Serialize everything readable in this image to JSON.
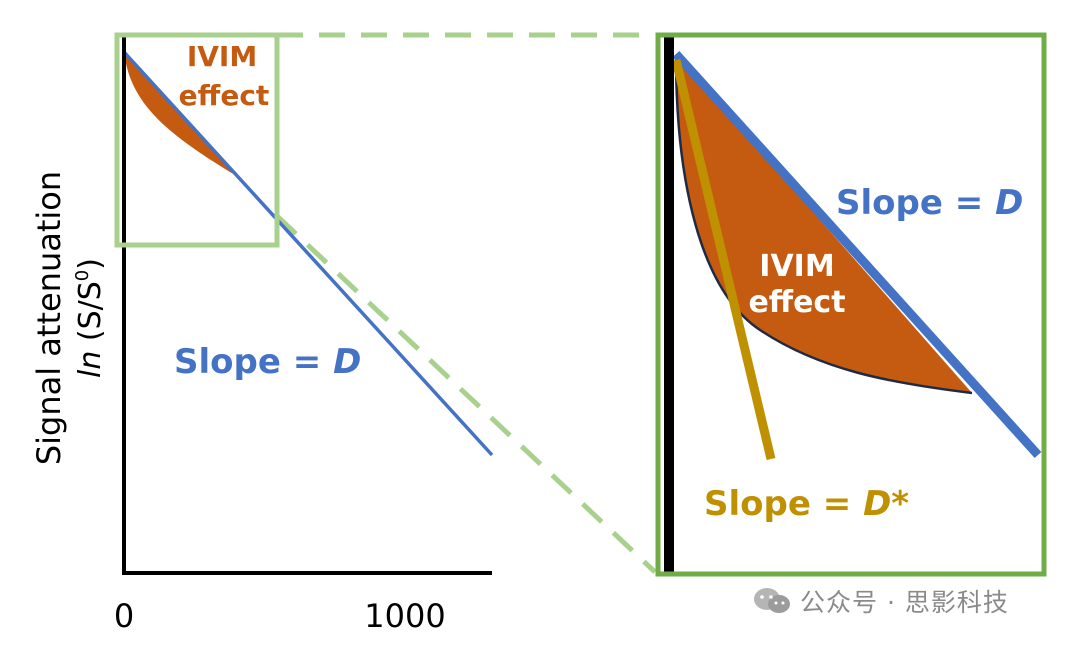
{
  "colors": {
    "axis": "#000000",
    "slope_d": "#4472c4",
    "slope_dstar": "#bf9000",
    "ivim_fill": "#c55a11",
    "ivim_curve": "#1f2a44",
    "zoom_box_left": "#a9d18e",
    "zoom_box_right": "#70ad47",
    "dashed_connector": "#a9d18e",
    "ivim_label_left": "#c55a11",
    "ivim_label_right": "#ffffff",
    "watermark": "#8a8a8a"
  },
  "left_panel": {
    "y_axis_label_line1": "Signal attenuation",
    "y_axis_label_line2_prefix": "ln",
    "y_axis_label_line2_rest": " (S/S",
    "y_axis_label_line2_sup": "0",
    "y_axis_label_line2_close": ")",
    "x_tick_0": "0",
    "x_tick_1000": "1000",
    "ivim_label_line1": "IVIM",
    "ivim_label_line2": "effect",
    "slope_label_prefix": "Slope = ",
    "slope_label_var": "D"
  },
  "right_panel": {
    "slope_d_prefix": "Slope = ",
    "slope_d_var": "D",
    "ivim_label_line1": "IVIM",
    "ivim_label_line2": "effect",
    "slope_dstar_prefix": "Slope = ",
    "slope_dstar_var": "D*"
  },
  "watermark": {
    "icon": "wechat-icon",
    "text": "公众号 · 思影科技"
  }
}
